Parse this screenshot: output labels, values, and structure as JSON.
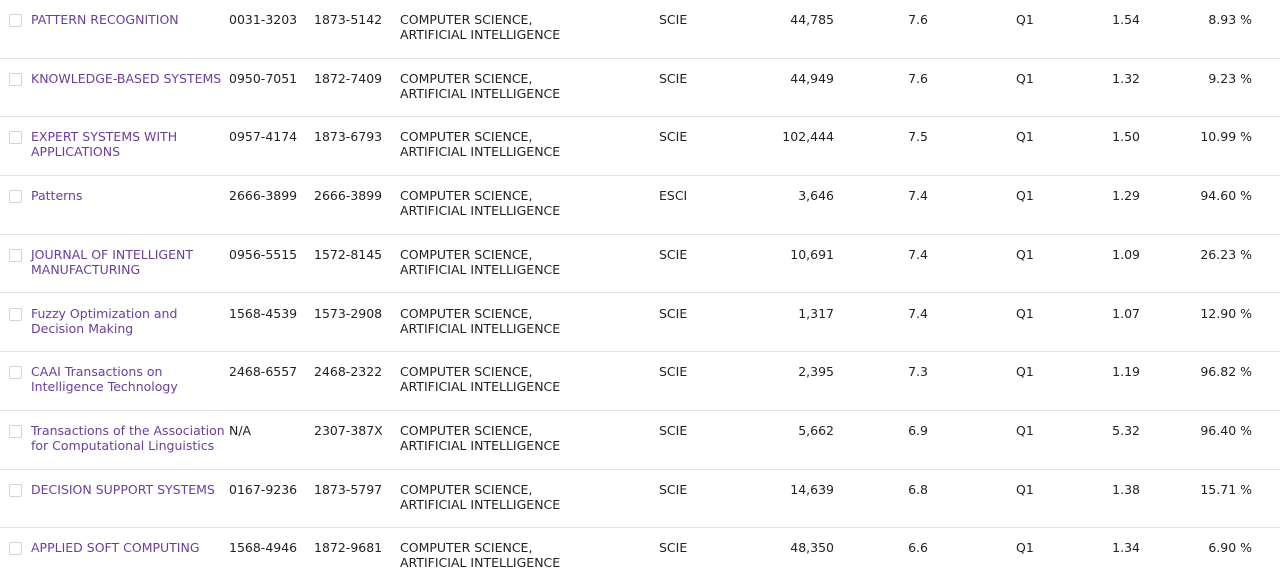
{
  "rows": [
    {
      "title": "PATTERN RECOGNITION",
      "issn": "0031-3203",
      "eissn": "1873-5142",
      "cat1": "COMPUTER SCIENCE,",
      "cat2": "ARTIFICIAL INTELLIGENCE",
      "edition": "SCIE",
      "cites": "44,785",
      "jif": "7.6",
      "quartile": "Q1",
      "jci": "1.54",
      "oa": "8.93 %"
    },
    {
      "title": "KNOWLEDGE-BASED SYSTEMS",
      "issn": "0950-7051",
      "eissn": "1872-7409",
      "cat1": "COMPUTER SCIENCE,",
      "cat2": "ARTIFICIAL INTELLIGENCE",
      "edition": "SCIE",
      "cites": "44,949",
      "jif": "7.6",
      "quartile": "Q1",
      "jci": "1.32",
      "oa": "9.23 %"
    },
    {
      "title": "EXPERT SYSTEMS WITH APPLICATIONS",
      "issn": "0957-4174",
      "eissn": "1873-6793",
      "cat1": "COMPUTER SCIENCE,",
      "cat2": "ARTIFICIAL INTELLIGENCE",
      "edition": "SCIE",
      "cites": "102,444",
      "jif": "7.5",
      "quartile": "Q1",
      "jci": "1.50",
      "oa": "10.99 %"
    },
    {
      "title": "Patterns",
      "issn": "2666-3899",
      "eissn": "2666-3899",
      "cat1": "COMPUTER SCIENCE,",
      "cat2": "ARTIFICIAL INTELLIGENCE",
      "edition": "ESCI",
      "cites": "3,646",
      "jif": "7.4",
      "quartile": "Q1",
      "jci": "1.29",
      "oa": "94.60 %"
    },
    {
      "title": "JOURNAL OF INTELLIGENT MANUFACTURING",
      "issn": "0956-5515",
      "eissn": "1572-8145",
      "cat1": "COMPUTER SCIENCE,",
      "cat2": "ARTIFICIAL INTELLIGENCE",
      "edition": "SCIE",
      "cites": "10,691",
      "jif": "7.4",
      "quartile": "Q1",
      "jci": "1.09",
      "oa": "26.23 %"
    },
    {
      "title": "Fuzzy Optimization and Decision Making",
      "issn": "1568-4539",
      "eissn": "1573-2908",
      "cat1": "COMPUTER SCIENCE,",
      "cat2": "ARTIFICIAL INTELLIGENCE",
      "edition": "SCIE",
      "cites": "1,317",
      "jif": "7.4",
      "quartile": "Q1",
      "jci": "1.07",
      "oa": "12.90 %"
    },
    {
      "title": "CAAI Transactions on Intelligence Technology",
      "issn": "2468-6557",
      "eissn": "2468-2322",
      "cat1": "COMPUTER SCIENCE,",
      "cat2": "ARTIFICIAL INTELLIGENCE",
      "edition": "SCIE",
      "cites": "2,395",
      "jif": "7.3",
      "quartile": "Q1",
      "jci": "1.19",
      "oa": "96.82 %"
    },
    {
      "title": "Transactions of the Association for Computational Linguistics",
      "issn": "N/A",
      "eissn": "2307-387X",
      "cat1": "COMPUTER SCIENCE,",
      "cat2": "ARTIFICIAL INTELLIGENCE",
      "edition": "SCIE",
      "cites": "5,662",
      "jif": "6.9",
      "quartile": "Q1",
      "jci": "5.32",
      "oa": "96.40 %"
    },
    {
      "title": "DECISION SUPPORT SYSTEMS",
      "issn": "0167-9236",
      "eissn": "1873-5797",
      "cat1": "COMPUTER SCIENCE,",
      "cat2": "ARTIFICIAL INTELLIGENCE",
      "edition": "SCIE",
      "cites": "14,639",
      "jif": "6.8",
      "quartile": "Q1",
      "jci": "1.38",
      "oa": "15.71 %"
    },
    {
      "title": "APPLIED SOFT COMPUTING",
      "issn": "1568-4946",
      "eissn": "1872-9681",
      "cat1": "COMPUTER SCIENCE,",
      "cat2": "ARTIFICIAL INTELLIGENCE",
      "edition": "SCIE",
      "cites": "48,350",
      "jif": "6.6",
      "quartile": "Q1",
      "jci": "1.34",
      "oa": "6.90 %"
    }
  ]
}
